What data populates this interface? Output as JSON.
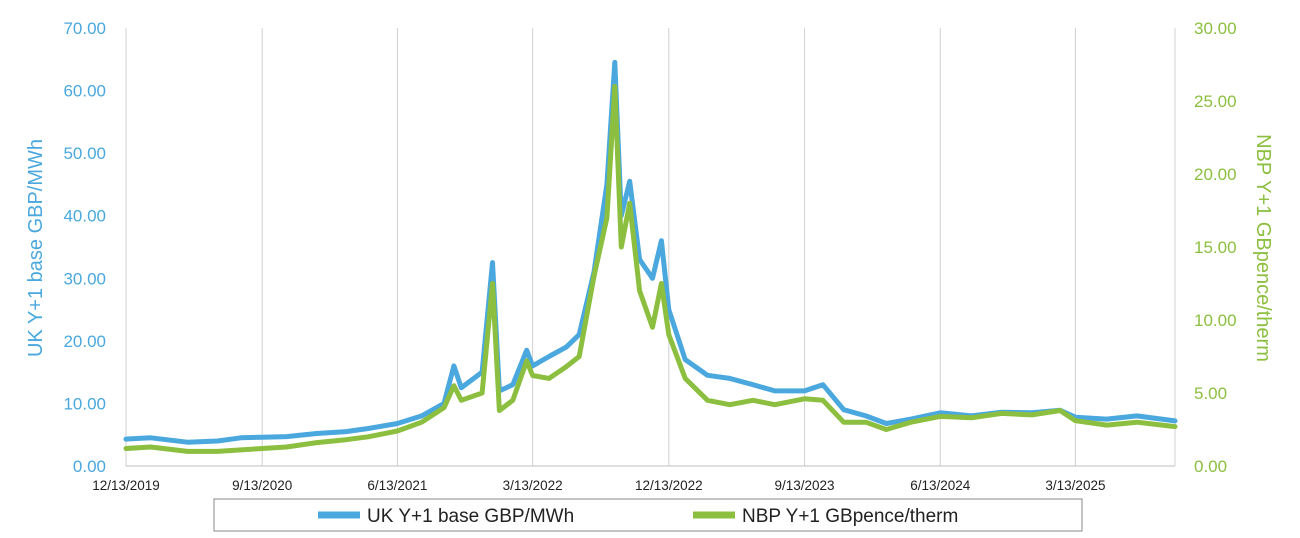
{
  "colors": {
    "uk_power": "#4aa8de",
    "nbp_gas": "#8cbf3f",
    "grid": "#d0d0d0",
    "legend_border": "#888888"
  },
  "chart_data": {
    "type": "line",
    "title": "",
    "xlabel": "",
    "ylabel": "UK Y+1 base GBP/MWh",
    "y2label": "NBP Y+1 GBpence/therm",
    "x_range": [
      "2019-12-13",
      "2025-09-30"
    ],
    "x_ticks": [
      "12/13/2019",
      "9/13/2020",
      "6/13/2021",
      "3/13/2022",
      "12/13/2022",
      "9/13/2023",
      "6/13/2024",
      "3/13/2025"
    ],
    "ylim": [
      0,
      70
    ],
    "y2lim": [
      0,
      30
    ],
    "y_ticks": [
      "0.00",
      "10.00",
      "20.00",
      "30.00",
      "40.00",
      "50.00",
      "60.00",
      "70.00"
    ],
    "y2_ticks": [
      "0.00",
      "5.00",
      "10.00",
      "15.00",
      "20.00",
      "25.00",
      "30.00"
    ],
    "grid": "vertical",
    "legend": "bottom",
    "series": [
      {
        "name": "UK Y+1 base GBP/MWh",
        "axis": "left",
        "points": [
          [
            "2019-12-13",
            4.3
          ],
          [
            "2020-02-01",
            4.5
          ],
          [
            "2020-04-15",
            3.8
          ],
          [
            "2020-06-15",
            4.0
          ],
          [
            "2020-08-01",
            4.5
          ],
          [
            "2020-09-13",
            4.6
          ],
          [
            "2020-11-01",
            4.7
          ],
          [
            "2021-01-01",
            5.2
          ],
          [
            "2021-03-01",
            5.5
          ],
          [
            "2021-04-15",
            6.0
          ],
          [
            "2021-06-13",
            6.8
          ],
          [
            "2021-08-01",
            8.0
          ],
          [
            "2021-09-15",
            10.0
          ],
          [
            "2021-10-05",
            16.0
          ],
          [
            "2021-10-20",
            12.5
          ],
          [
            "2021-12-01",
            15.0
          ],
          [
            "2021-12-22",
            32.5
          ],
          [
            "2022-01-05",
            12.0
          ],
          [
            "2022-02-01",
            13.0
          ],
          [
            "2022-03-01",
            18.5
          ],
          [
            "2022-03-13",
            16.0
          ],
          [
            "2022-04-15",
            17.5
          ],
          [
            "2022-05-20",
            19.0
          ],
          [
            "2022-06-15",
            21.0
          ],
          [
            "2022-07-15",
            31.0
          ],
          [
            "2022-08-10",
            45.0
          ],
          [
            "2022-08-26",
            64.5
          ],
          [
            "2022-09-08",
            40.0
          ],
          [
            "2022-09-25",
            45.5
          ],
          [
            "2022-10-15",
            33.0
          ],
          [
            "2022-11-10",
            30.0
          ],
          [
            "2022-11-28",
            36.0
          ],
          [
            "2022-12-13",
            25.0
          ],
          [
            "2023-01-15",
            17.0
          ],
          [
            "2023-03-01",
            14.5
          ],
          [
            "2023-04-15",
            14.0
          ],
          [
            "2023-06-01",
            13.0
          ],
          [
            "2023-07-15",
            12.0
          ],
          [
            "2023-09-13",
            12.0
          ],
          [
            "2023-10-20",
            13.0
          ],
          [
            "2023-12-01",
            9.0
          ],
          [
            "2024-01-15",
            8.0
          ],
          [
            "2024-02-25",
            6.8
          ],
          [
            "2024-04-15",
            7.5
          ],
          [
            "2024-06-13",
            8.5
          ],
          [
            "2024-08-15",
            8.0
          ],
          [
            "2024-10-15",
            8.6
          ],
          [
            "2024-12-15",
            8.5
          ],
          [
            "2025-02-10",
            8.9
          ],
          [
            "2025-03-13",
            7.8
          ],
          [
            "2025-05-15",
            7.5
          ],
          [
            "2025-07-15",
            8.0
          ],
          [
            "2025-09-30",
            7.2
          ]
        ]
      },
      {
        "name": "NBP Y+1 GBpence/therm",
        "axis": "right",
        "points": [
          [
            "2019-12-13",
            1.2
          ],
          [
            "2020-02-01",
            1.3
          ],
          [
            "2020-04-15",
            1.0
          ],
          [
            "2020-06-15",
            1.0
          ],
          [
            "2020-08-01",
            1.1
          ],
          [
            "2020-09-13",
            1.2
          ],
          [
            "2020-11-01",
            1.3
          ],
          [
            "2021-01-01",
            1.6
          ],
          [
            "2021-03-01",
            1.8
          ],
          [
            "2021-04-15",
            2.0
          ],
          [
            "2021-06-13",
            2.4
          ],
          [
            "2021-08-01",
            3.0
          ],
          [
            "2021-09-15",
            4.0
          ],
          [
            "2021-10-05",
            5.5
          ],
          [
            "2021-10-20",
            4.5
          ],
          [
            "2021-12-01",
            5.0
          ],
          [
            "2021-12-22",
            12.5
          ],
          [
            "2022-01-05",
            3.8
          ],
          [
            "2022-02-01",
            4.5
          ],
          [
            "2022-03-01",
            7.2
          ],
          [
            "2022-03-13",
            6.2
          ],
          [
            "2022-04-15",
            6.0
          ],
          [
            "2022-05-20",
            6.8
          ],
          [
            "2022-06-15",
            7.5
          ],
          [
            "2022-07-15",
            13.0
          ],
          [
            "2022-08-10",
            17.0
          ],
          [
            "2022-08-26",
            26.0
          ],
          [
            "2022-09-08",
            15.0
          ],
          [
            "2022-09-25",
            18.0
          ],
          [
            "2022-10-15",
            12.0
          ],
          [
            "2022-11-10",
            9.5
          ],
          [
            "2022-11-28",
            12.5
          ],
          [
            "2022-12-13",
            9.0
          ],
          [
            "2023-01-15",
            6.0
          ],
          [
            "2023-03-01",
            4.5
          ],
          [
            "2023-04-15",
            4.2
          ],
          [
            "2023-06-01",
            4.5
          ],
          [
            "2023-07-15",
            4.2
          ],
          [
            "2023-09-13",
            4.6
          ],
          [
            "2023-10-20",
            4.5
          ],
          [
            "2023-12-01",
            3.0
          ],
          [
            "2024-01-15",
            3.0
          ],
          [
            "2024-02-25",
            2.5
          ],
          [
            "2024-04-15",
            3.0
          ],
          [
            "2024-06-13",
            3.4
          ],
          [
            "2024-08-15",
            3.3
          ],
          [
            "2024-10-15",
            3.6
          ],
          [
            "2024-12-15",
            3.5
          ],
          [
            "2025-02-10",
            3.8
          ],
          [
            "2025-03-13",
            3.1
          ],
          [
            "2025-05-15",
            2.8
          ],
          [
            "2025-07-15",
            3.0
          ],
          [
            "2025-09-30",
            2.7
          ]
        ]
      }
    ]
  }
}
